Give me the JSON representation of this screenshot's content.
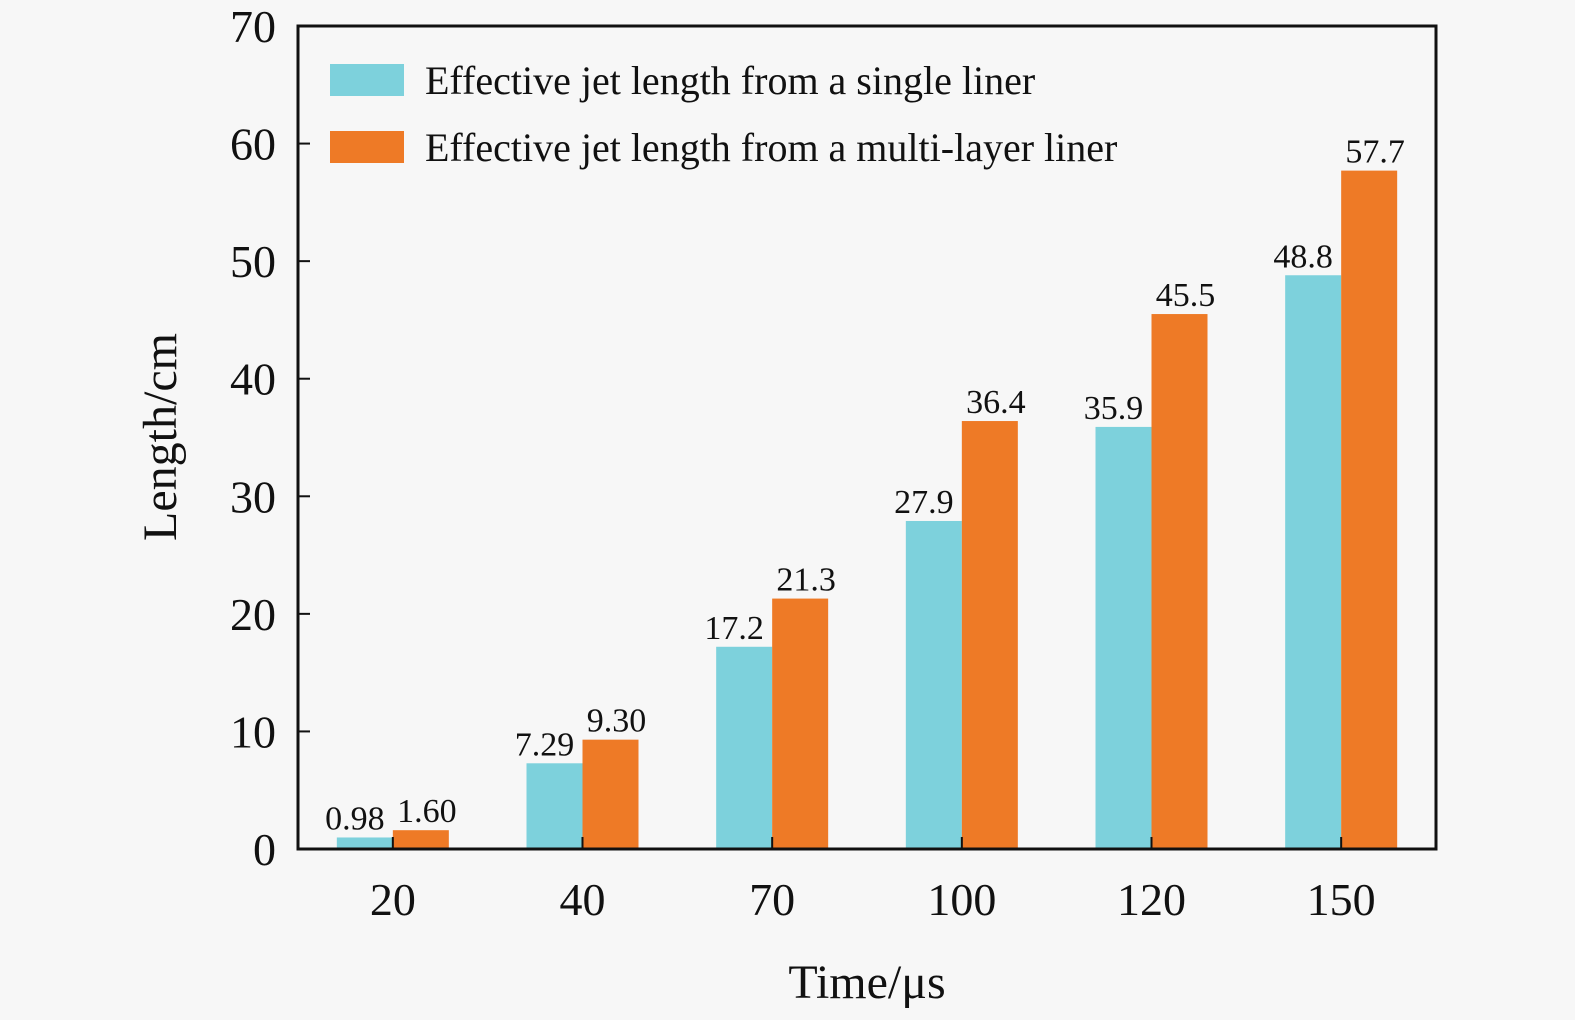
{
  "chart_data": {
    "type": "bar",
    "title": "",
    "xlabel": "Time/μs",
    "ylabel": "Length/cm",
    "categories": [
      "20",
      "40",
      "70",
      "100",
      "120",
      "150"
    ],
    "series": [
      {
        "name": "Effective jet length from a single liner",
        "color": "#7dd1dc",
        "values": [
          0.98,
          7.29,
          17.2,
          27.9,
          35.9,
          48.8
        ],
        "labels": [
          "0.98",
          "7.29",
          "17.2",
          "27.9",
          "35.9",
          "48.8"
        ]
      },
      {
        "name": "Effective jet length from a multi-layer liner",
        "color": "#ee7a26",
        "values": [
          1.6,
          9.3,
          21.3,
          36.4,
          45.5,
          57.7
        ],
        "labels": [
          "1.60",
          "9.30",
          "21.3",
          "36.4",
          "45.5",
          "57.7"
        ]
      }
    ],
    "ylim": [
      0,
      70
    ],
    "yticks": [
      "0",
      "10",
      "20",
      "30",
      "40",
      "50",
      "60",
      "70"
    ],
    "grid": false,
    "legend_position": "top-left"
  }
}
